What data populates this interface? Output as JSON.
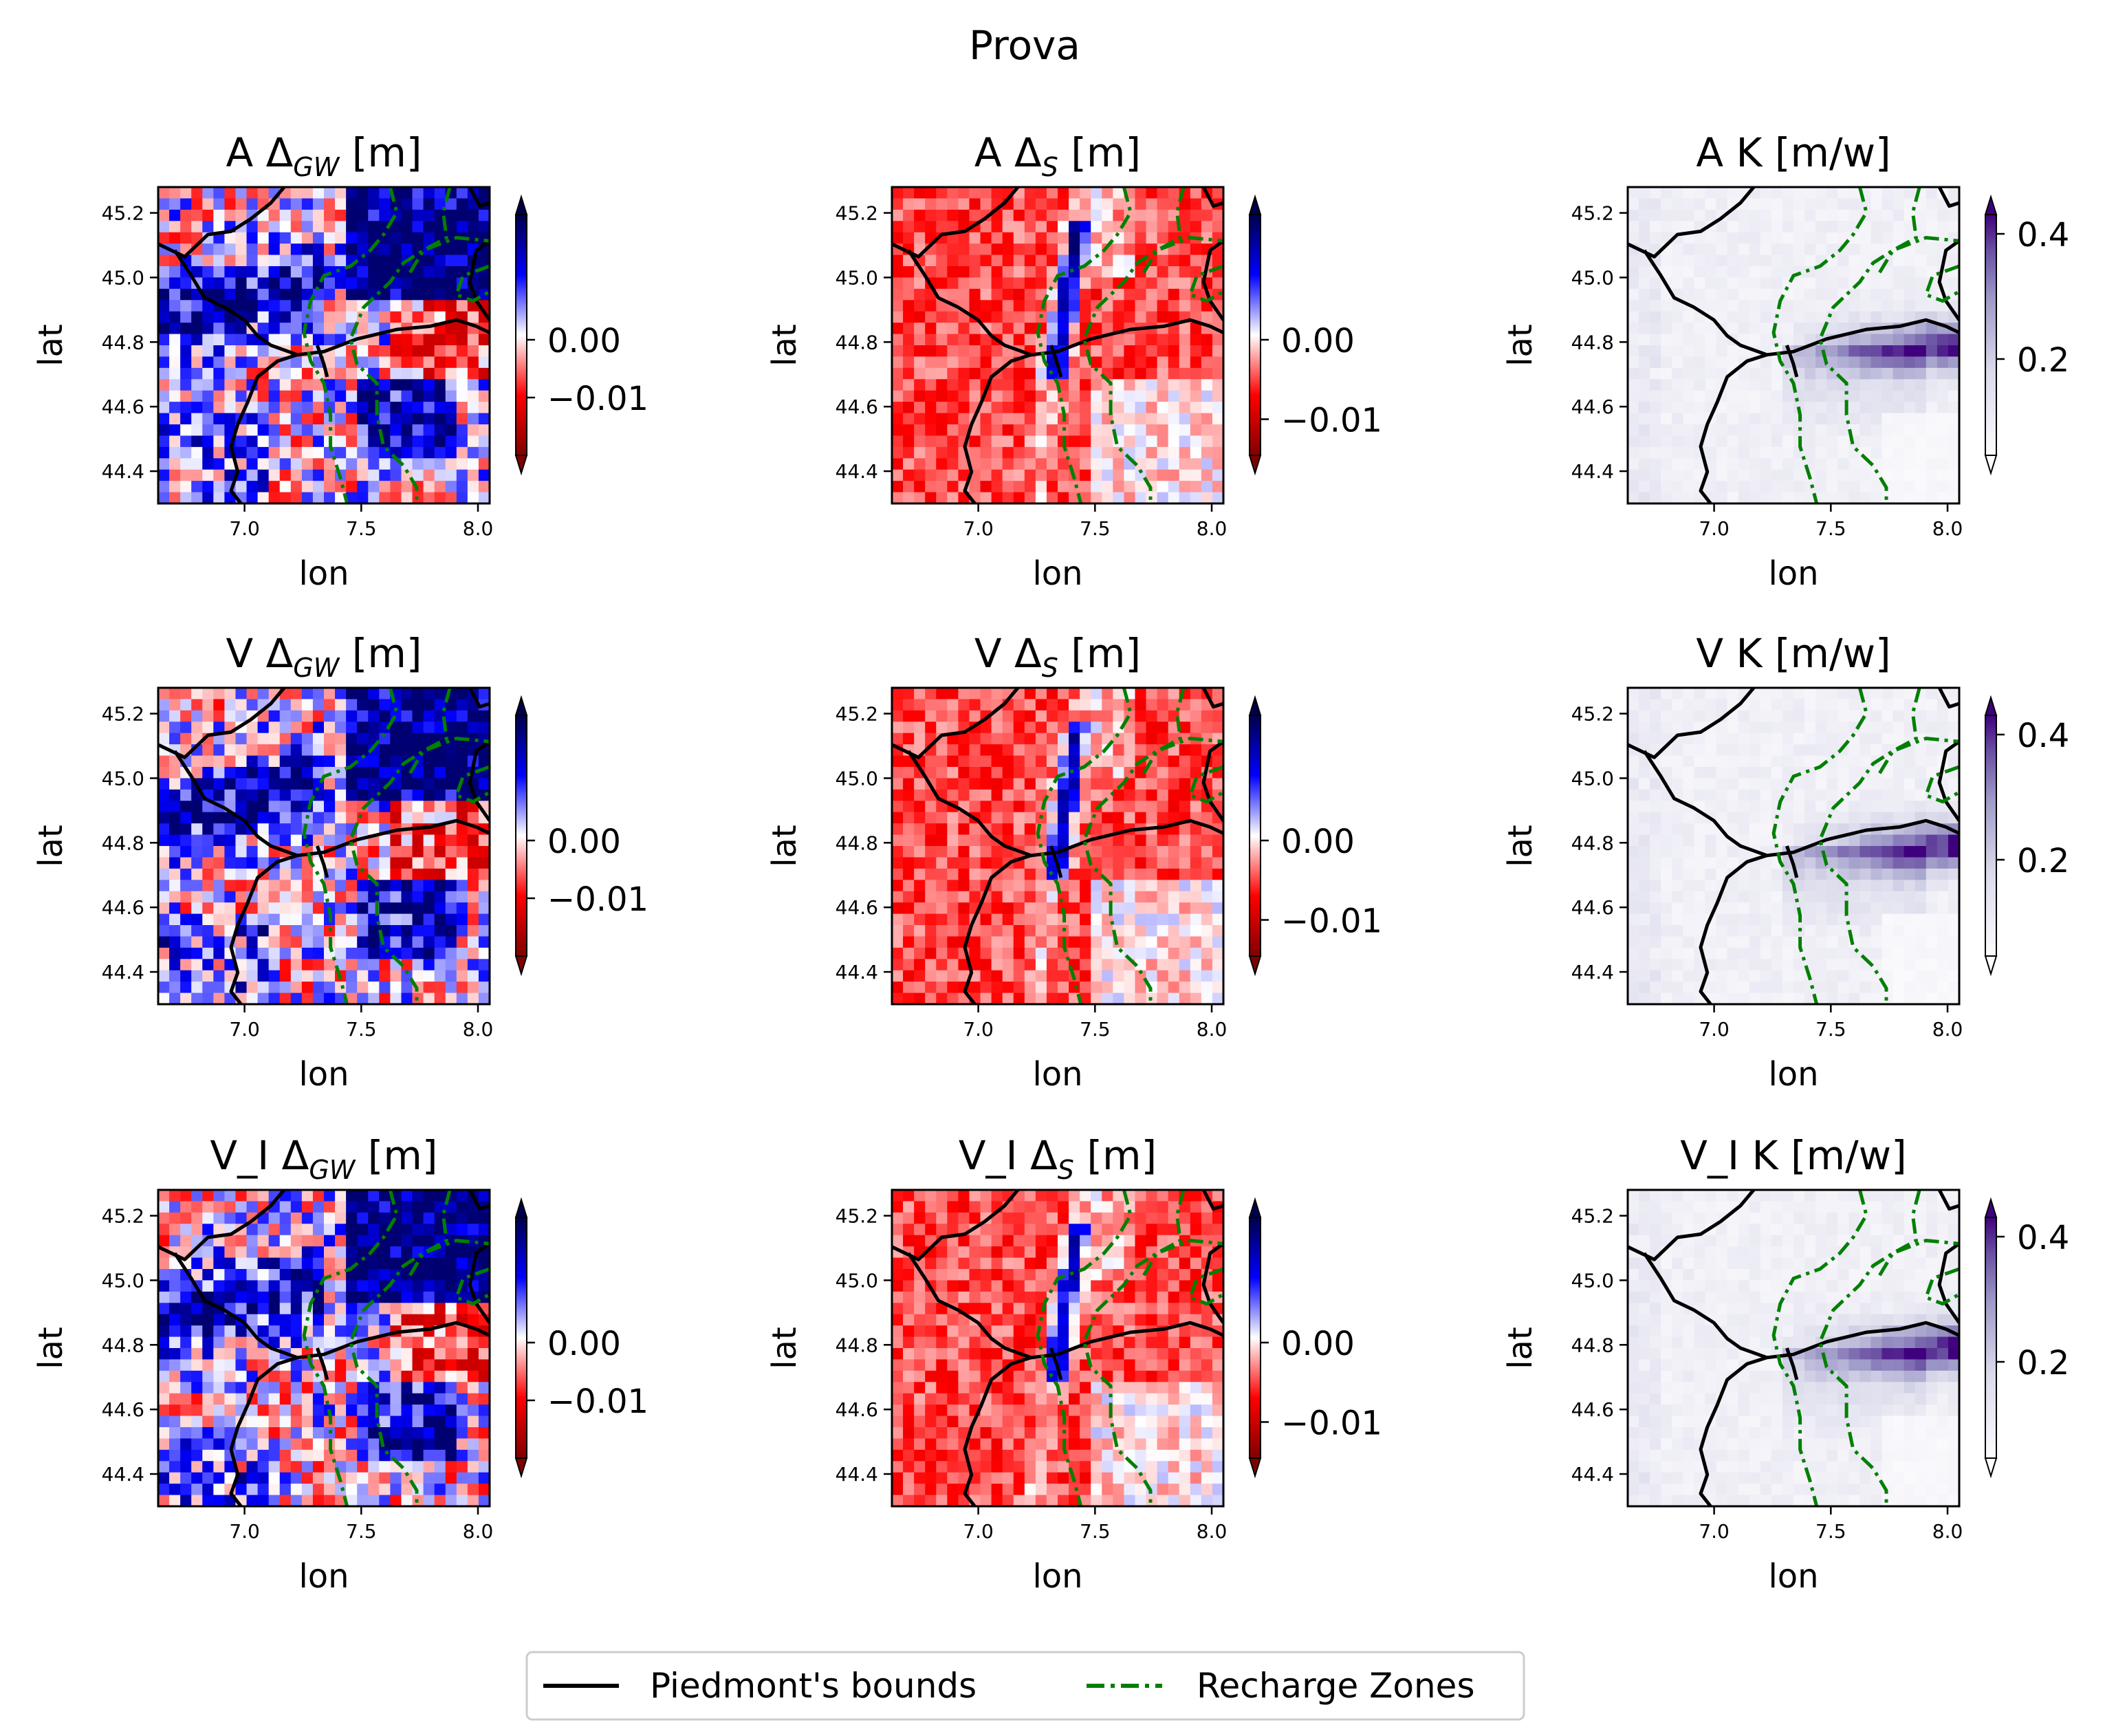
{
  "figure": {
    "title": "Prova"
  },
  "axis_labels": {
    "x": "lon",
    "y": "lat"
  },
  "legend": {
    "placement": "bottom-center",
    "items": [
      {
        "label": "Piedmont's bounds",
        "color": "#000000",
        "style": "solid"
      },
      {
        "label": "Recharge Zones",
        "color": "#008000",
        "style": "dashdot"
      }
    ]
  },
  "chart_data": [
    {
      "type": "heatmap",
      "row": 0,
      "col": 0,
      "title_prefix": "A",
      "title_sym": "Δ",
      "title_sub": "GW",
      "title_unit": "[m]",
      "xlim": [
        6.63,
        8.05
      ],
      "ylim": [
        44.3,
        45.28
      ],
      "xticks": [
        "7.0",
        "7.5",
        "8.0"
      ],
      "yticks": [
        "44.4",
        "44.6",
        "44.8",
        "45.0",
        "45.2"
      ],
      "colormap": "seismic_r",
      "field": "gw",
      "seed": 11,
      "colorbar": {
        "ticks": [
          "0.00",
          "−0.01"
        ],
        "extend": "both"
      }
    },
    {
      "type": "heatmap",
      "row": 0,
      "col": 1,
      "title_prefix": "A",
      "title_sym": "Δ",
      "title_sub": "S",
      "title_unit": "[m]",
      "xlim": [
        6.63,
        8.05
      ],
      "ylim": [
        44.3,
        45.28
      ],
      "xticks": [
        "7.0",
        "7.5",
        "8.0"
      ],
      "yticks": [
        "44.4",
        "44.6",
        "44.8",
        "45.0",
        "45.2"
      ],
      "colormap": "seismic_r",
      "field": "s",
      "seed": 12,
      "colorbar": {
        "ticks": [
          "0.00",
          "−0.01"
        ],
        "extend": "both"
      }
    },
    {
      "type": "heatmap",
      "row": 0,
      "col": 2,
      "title_prefix": "A K [m/w]",
      "title_sym": "",
      "title_sub": "",
      "title_unit": "",
      "xlim": [
        6.63,
        8.05
      ],
      "ylim": [
        44.3,
        45.28
      ],
      "xticks": [
        "7.0",
        "7.5",
        "8.0"
      ],
      "yticks": [
        "44.4",
        "44.6",
        "44.8",
        "45.0",
        "45.2"
      ],
      "colormap": "Purples",
      "field": "k",
      "seed": 13,
      "colorbar": {
        "ticks": [
          "0.4",
          "0.2"
        ],
        "extend": "both"
      }
    },
    {
      "type": "heatmap",
      "row": 1,
      "col": 0,
      "title_prefix": "V",
      "title_sym": "Δ",
      "title_sub": "GW",
      "title_unit": "[m]",
      "xlim": [
        6.63,
        8.05
      ],
      "ylim": [
        44.3,
        45.28
      ],
      "xticks": [
        "7.0",
        "7.5",
        "8.0"
      ],
      "yticks": [
        "44.4",
        "44.6",
        "44.8",
        "45.0",
        "45.2"
      ],
      "colormap": "seismic_r",
      "field": "gw",
      "seed": 21,
      "colorbar": {
        "ticks": [
          "0.00",
          "−0.01"
        ],
        "extend": "both"
      }
    },
    {
      "type": "heatmap",
      "row": 1,
      "col": 1,
      "title_prefix": "V",
      "title_sym": "Δ",
      "title_sub": "S",
      "title_unit": "[m]",
      "xlim": [
        6.63,
        8.05
      ],
      "ylim": [
        44.3,
        45.28
      ],
      "xticks": [
        "7.0",
        "7.5",
        "8.0"
      ],
      "yticks": [
        "44.4",
        "44.6",
        "44.8",
        "45.0",
        "45.2"
      ],
      "colormap": "seismic_r",
      "field": "s",
      "seed": 22,
      "colorbar": {
        "ticks": [
          "0.00",
          "−0.01"
        ],
        "extend": "both"
      }
    },
    {
      "type": "heatmap",
      "row": 1,
      "col": 2,
      "title_prefix": "V K [m/w]",
      "title_sym": "",
      "title_sub": "",
      "title_unit": "",
      "xlim": [
        6.63,
        8.05
      ],
      "ylim": [
        44.3,
        45.28
      ],
      "xticks": [
        "7.0",
        "7.5",
        "8.0"
      ],
      "yticks": [
        "44.4",
        "44.6",
        "44.8",
        "45.0",
        "45.2"
      ],
      "colormap": "Purples",
      "field": "k",
      "seed": 23,
      "colorbar": {
        "ticks": [
          "0.4",
          "0.2"
        ],
        "extend": "both"
      }
    },
    {
      "type": "heatmap",
      "row": 2,
      "col": 0,
      "title_prefix": "V_I",
      "title_sym": "Δ",
      "title_sub": "GW",
      "title_unit": "[m]",
      "xlim": [
        6.63,
        8.05
      ],
      "ylim": [
        44.3,
        45.28
      ],
      "xticks": [
        "7.0",
        "7.5",
        "8.0"
      ],
      "yticks": [
        "44.4",
        "44.6",
        "44.8",
        "45.0",
        "45.2"
      ],
      "colormap": "seismic_r",
      "field": "gw",
      "seed": 31,
      "colorbar": {
        "ticks": [
          "0.00",
          "−0.01"
        ],
        "extend": "both"
      }
    },
    {
      "type": "heatmap",
      "row": 2,
      "col": 1,
      "title_prefix": "V_I",
      "title_sym": "Δ",
      "title_sub": "S",
      "title_unit": "[m]",
      "xlim": [
        6.63,
        8.05
      ],
      "ylim": [
        44.3,
        45.28
      ],
      "xticks": [
        "7.0",
        "7.5",
        "8.0"
      ],
      "yticks": [
        "44.4",
        "44.6",
        "44.8",
        "45.0",
        "45.2"
      ],
      "colormap": "seismic_r",
      "field": "s",
      "seed": 32,
      "colorbar": {
        "ticks": [
          "0.00",
          "−0.01"
        ],
        "extend": "both"
      }
    },
    {
      "type": "heatmap",
      "row": 2,
      "col": 2,
      "title_prefix": "V_I K [m/w]",
      "title_sym": "",
      "title_sub": "",
      "title_unit": "",
      "xlim": [
        6.63,
        8.05
      ],
      "ylim": [
        44.3,
        45.28
      ],
      "xticks": [
        "7.0",
        "7.5",
        "8.0"
      ],
      "yticks": [
        "44.4",
        "44.6",
        "44.8",
        "45.0",
        "45.2"
      ],
      "colormap": "Purples",
      "field": "k",
      "seed": 33,
      "colorbar": {
        "ticks": [
          "0.4",
          "0.2"
        ],
        "extend": "both"
      }
    }
  ]
}
